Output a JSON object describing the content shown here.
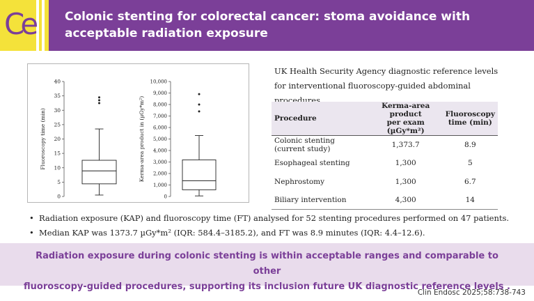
{
  "header": {
    "title": "Colonic stenting for colorectal cancer: stoma avoidance with acceptable radiation exposure",
    "logo_text": "Ce",
    "colors": {
      "brand_purple": "#7b3f98",
      "logo_yellow": "#f4e23a",
      "band_lilac": "#e9dcec"
    }
  },
  "chart_data": [
    {
      "type": "box",
      "ylabel": "Fluoroscopy time (min)",
      "ylim": [
        0,
        40
      ],
      "yticks": [
        "0",
        "5",
        "10",
        "15",
        "20",
        "25",
        "30",
        "35",
        "40"
      ],
      "whisker_low": 0.5,
      "q1": 4.4,
      "median": 8.9,
      "q3": 12.6,
      "whisker_high": 23.5,
      "outliers": [
        32.5,
        33.5,
        34.5
      ]
    },
    {
      "type": "box",
      "ylabel": "Kerma-area product in (µGy*m²)",
      "ylim": [
        0,
        10000
      ],
      "yticks": [
        "0",
        "1,000",
        "2,000",
        "3,000",
        "4,000",
        "5,000",
        "6,000",
        "7,000",
        "8,000",
        "9,000",
        "10,000"
      ],
      "whisker_low": 50,
      "q1": 584.4,
      "median": 1373.7,
      "q3": 3185.2,
      "whisker_high": 5300,
      "outliers": [
        7400,
        8000,
        8900
      ]
    }
  ],
  "table": {
    "caption": "UK Health Security Agency diagnostic reference levels for interventional fluoroscopy-guided abdominal procedures",
    "headers": {
      "procedure": "Procedure",
      "kap_line1": "Kerma-area product",
      "kap_line2": "per exam (µGy*m²)",
      "ft_line1": "Fluoroscopy",
      "ft_line2": "time (min)"
    },
    "rows": [
      {
        "procedure": "Colonic stenting (current study)",
        "kap": "1,373.7",
        "ft": "8.9"
      },
      {
        "procedure": "Esophageal stenting",
        "kap": "1,300",
        "ft": "5"
      },
      {
        "procedure": "Nephrostomy",
        "kap": "1,300",
        "ft": "6.7"
      },
      {
        "procedure": "Biliary intervention",
        "kap": "4,300",
        "ft": "14"
      }
    ]
  },
  "bullets": [
    "Radiation exposure (KAP) and fluoroscopy time (FT) analysed for 52 stenting procedures performed on 47 patients.",
    "Median KAP was 1373.7 µGy*m² (IQR: 584.4–3185.2), and FT was 8.9 minutes (IQR: 4.4–12.6)."
  ],
  "conclusion": {
    "line1": "Radiation exposure during colonic stenting is within acceptable ranges and comparable to other",
    "line2": "fluoroscopy-guided procedures, supporting its inclusion future UK diagnostic reference levels ."
  },
  "citation": "Clin Endosc 2025;58:738-743"
}
